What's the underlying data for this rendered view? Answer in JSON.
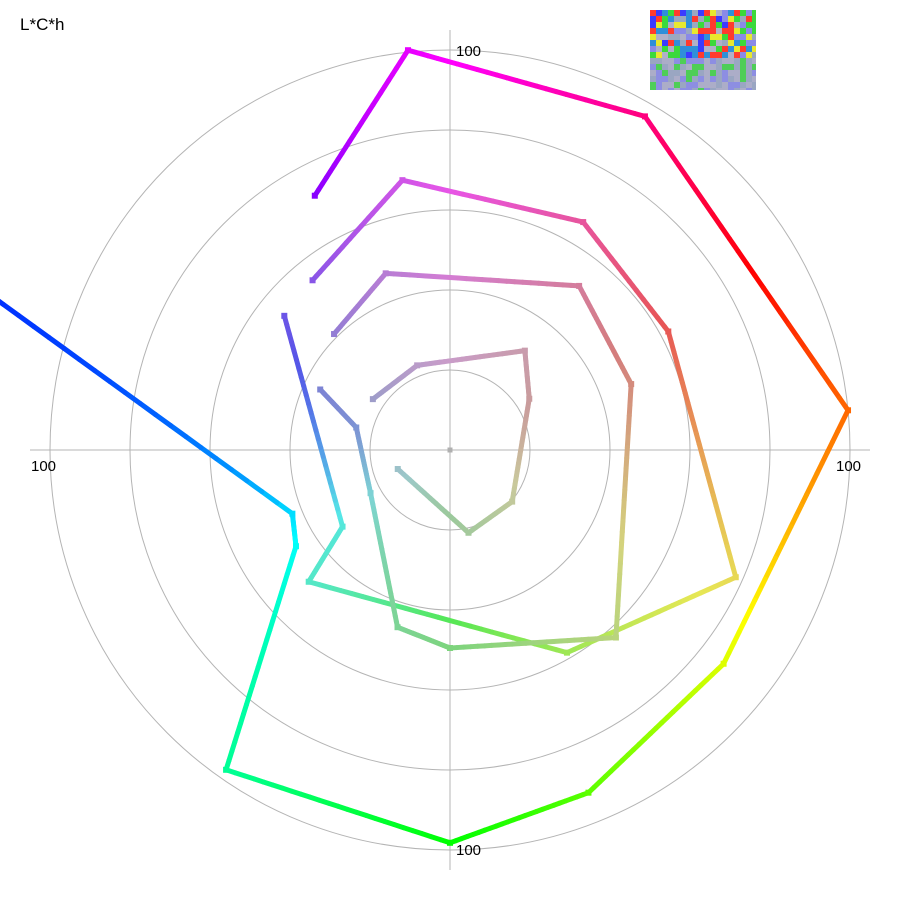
{
  "chart_data": {
    "type": "line",
    "title": "L*C*h",
    "coordinate_system": "polar",
    "radial_range": [
      0,
      100
    ],
    "rings": [
      20,
      40,
      60,
      80,
      100
    ],
    "axis_labels": {
      "top": "100",
      "left": "100",
      "right": "100",
      "bottom": "100"
    },
    "grid": true,
    "legend": "none",
    "series": [
      {
        "vertices": [
          [
            118.0,
            72.0
          ],
          [
            96.0,
            100.5
          ],
          [
            59.7,
            96.6
          ],
          [
            5.7,
            100.0
          ],
          [
            322.0,
            86.8
          ],
          [
            292.0,
            92.4
          ],
          [
            270.0,
            98.2
          ],
          [
            235.0,
            97.6
          ],
          [
            212.0,
            45.4
          ],
          [
            202.0,
            42.5
          ],
          [
            159.0,
            140.0
          ]
        ]
      },
      {
        "vertices": [
          [
            129.0,
            54.6
          ],
          [
            100.0,
            68.5
          ],
          [
            59.7,
            66.0
          ],
          [
            28.5,
            62.1
          ],
          [
            336.0,
            78.2
          ],
          [
            300.0,
            58.5
          ],
          [
            223.0,
            48.3
          ],
          [
            215.5,
            33.0
          ],
          [
            141.0,
            53.3
          ]
        ]
      },
      {
        "vertices": [
          [
            135.0,
            41.0
          ],
          [
            110.0,
            47.0
          ],
          [
            51.8,
            52.2
          ],
          [
            20.0,
            48.2
          ],
          [
            311.5,
            62.6
          ],
          [
            270.0,
            49.5
          ],
          [
            253.5,
            46.2
          ],
          [
            208.5,
            22.6
          ],
          [
            166.5,
            24.1
          ],
          [
            155.0,
            35.8
          ]
        ]
      },
      {
        "vertices": [
          [
            146.6,
            23.1
          ],
          [
            111.2,
            22.7
          ],
          [
            53.0,
            31.1
          ],
          [
            32.9,
            23.6
          ],
          [
            320.3,
            20.2
          ],
          [
            282.6,
            21.2
          ],
          [
            200.0,
            13.9
          ]
        ]
      }
    ],
    "thumbnail": {
      "description_colors": [
        "#2f8fd9",
        "#3bd93b",
        "#e8e82e",
        "#ff3b2e",
        "#3b3bff",
        "#8a8ae8",
        "#b0b0c8",
        "#9aa8c0"
      ]
    }
  }
}
